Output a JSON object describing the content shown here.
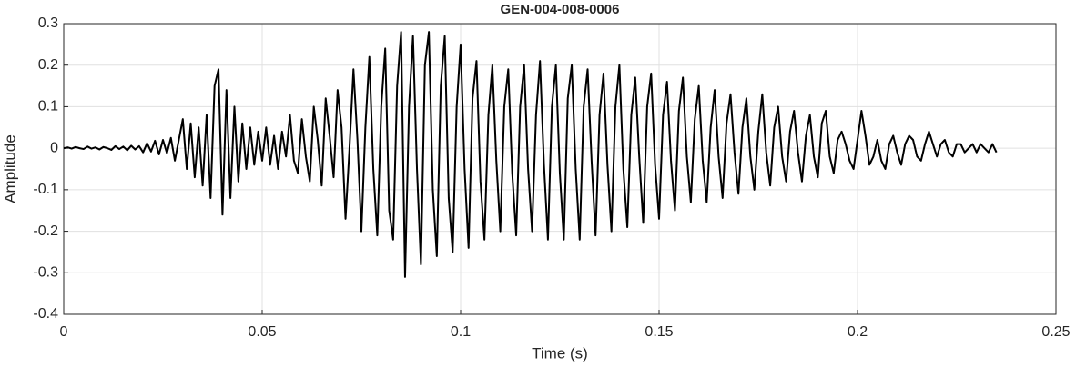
{
  "chart_data": {
    "type": "line",
    "title": "GEN-004-008-0006",
    "x_label": "Time (s)",
    "y_label": "Amplitude",
    "xlim": [
      0,
      0.25
    ],
    "xticks": [
      0,
      0.05,
      0.1,
      0.15,
      0.2,
      0.25
    ],
    "ylim": [
      -0.4,
      0.3
    ],
    "yticks": [
      -0.4,
      -0.3,
      -0.2,
      -0.1,
      0,
      0.1,
      0.2,
      0.3
    ],
    "grid": true,
    "color": "#000000",
    "x": [
      0,
      0.001,
      0.002,
      0.003,
      0.004,
      0.005,
      0.006,
      0.007,
      0.008,
      0.009,
      0.01,
      0.011,
      0.012,
      0.013,
      0.014,
      0.015,
      0.016,
      0.017,
      0.018,
      0.019,
      0.02,
      0.021,
      0.022,
      0.023,
      0.024,
      0.025,
      0.026,
      0.027,
      0.028,
      0.029,
      0.03,
      0.031,
      0.032,
      0.033,
      0.034,
      0.035,
      0.036,
      0.037,
      0.038,
      0.039,
      0.04,
      0.041,
      0.042,
      0.043,
      0.044,
      0.045,
      0.046,
      0.047,
      0.048,
      0.049,
      0.05,
      0.051,
      0.052,
      0.053,
      0.054,
      0.055,
      0.056,
      0.057,
      0.058,
      0.059,
      0.06,
      0.061,
      0.062,
      0.063,
      0.064,
      0.065,
      0.066,
      0.067,
      0.068,
      0.069,
      0.07,
      0.071,
      0.072,
      0.073,
      0.074,
      0.075,
      0.076,
      0.077,
      0.078,
      0.079,
      0.08,
      0.081,
      0.082,
      0.083,
      0.084,
      0.085,
      0.086,
      0.087,
      0.088,
      0.089,
      0.09,
      0.091,
      0.092,
      0.093,
      0.094,
      0.095,
      0.096,
      0.097,
      0.098,
      0.099,
      0.1,
      0.101,
      0.102,
      0.103,
      0.104,
      0.105,
      0.106,
      0.107,
      0.108,
      0.109,
      0.11,
      0.111,
      0.112,
      0.113,
      0.114,
      0.115,
      0.116,
      0.117,
      0.118,
      0.119,
      0.12,
      0.121,
      0.122,
      0.123,
      0.124,
      0.125,
      0.126,
      0.127,
      0.128,
      0.129,
      0.13,
      0.131,
      0.132,
      0.133,
      0.134,
      0.135,
      0.136,
      0.137,
      0.138,
      0.139,
      0.14,
      0.141,
      0.142,
      0.143,
      0.144,
      0.145,
      0.146,
      0.147,
      0.148,
      0.149,
      0.15,
      0.151,
      0.152,
      0.153,
      0.154,
      0.155,
      0.156,
      0.157,
      0.158,
      0.159,
      0.16,
      0.161,
      0.162,
      0.163,
      0.164,
      0.165,
      0.166,
      0.167,
      0.168,
      0.169,
      0.17,
      0.171,
      0.172,
      0.173,
      0.174,
      0.175,
      0.176,
      0.177,
      0.178,
      0.179,
      0.18,
      0.181,
      0.182,
      0.183,
      0.184,
      0.185,
      0.186,
      0.187,
      0.188,
      0.189,
      0.19,
      0.191,
      0.192,
      0.193,
      0.194,
      0.195,
      0.196,
      0.197,
      0.198,
      0.199,
      0.2,
      0.201,
      0.202,
      0.203,
      0.204,
      0.205,
      0.206,
      0.207,
      0.208,
      0.209,
      0.21,
      0.211,
      0.212,
      0.213,
      0.214,
      0.215,
      0.216,
      0.217,
      0.218,
      0.219,
      0.22,
      0.221,
      0.222,
      0.223,
      0.224,
      0.225,
      0.226,
      0.227,
      0.228,
      0.229,
      0.23,
      0.231,
      0.232,
      0.233,
      0.234,
      0.235
    ],
    "values": [
      0,
      0.002,
      -0.001,
      0.003,
      0,
      -0.002,
      0.004,
      -0.001,
      0.002,
      -0.003,
      0.003,
      0,
      -0.004,
      0.005,
      -0.002,
      0.004,
      -0.005,
      0.006,
      -0.003,
      0.005,
      -0.01,
      0.012,
      -0.008,
      0.018,
      -0.015,
      0.02,
      -0.012,
      0.025,
      -0.03,
      0.02,
      0.07,
      -0.05,
      0.06,
      -0.07,
      0.05,
      -0.09,
      0.08,
      -0.12,
      0.15,
      0.19,
      -0.16,
      0.14,
      -0.12,
      0.1,
      -0.08,
      0.06,
      -0.05,
      0.05,
      -0.04,
      0.04,
      -0.03,
      0.05,
      -0.04,
      0.03,
      -0.05,
      0.04,
      -0.02,
      0.08,
      -0.03,
      -0.06,
      0.07,
      -0.02,
      -0.08,
      0.1,
      0.02,
      -0.09,
      0.12,
      0.03,
      -0.07,
      0.14,
      0.05,
      -0.17,
      0.0,
      0.19,
      0.02,
      -0.2,
      0.05,
      0.22,
      -0.05,
      -0.21,
      0.1,
      0.24,
      -0.15,
      -0.22,
      0.15,
      0.28,
      -0.31,
      0.1,
      0.27,
      -0.05,
      -0.28,
      0.2,
      0.28,
      -0.1,
      -0.26,
      0.15,
      0.27,
      -0.12,
      -0.25,
      0.1,
      0.25,
      -0.05,
      -0.24,
      0.12,
      0.21,
      -0.08,
      -0.22,
      0.08,
      0.2,
      -0.03,
      -0.2,
      0.1,
      0.19,
      -0.06,
      -0.21,
      0.1,
      0.2,
      -0.05,
      -0.2,
      0.08,
      0.21,
      -0.04,
      -0.22,
      0.1,
      0.2,
      -0.06,
      -0.22,
      0.12,
      0.2,
      -0.05,
      -0.22,
      0.1,
      0.19,
      -0.03,
      -0.21,
      0.08,
      0.18,
      -0.04,
      -0.2,
      0.1,
      0.2,
      -0.05,
      -0.19,
      0.08,
      0.17,
      -0.02,
      -0.18,
      0.1,
      0.18,
      -0.04,
      -0.17,
      0.08,
      0.16,
      -0.03,
      -0.15,
      0.09,
      0.17,
      -0.02,
      -0.13,
      0.07,
      0.15,
      -0.03,
      -0.13,
      0.05,
      0.14,
      -0.02,
      -0.12,
      0.06,
      0.13,
      -0.01,
      -0.11,
      0.05,
      0.12,
      -0.02,
      -0.1,
      0.04,
      0.13,
      -0.01,
      -0.09,
      0.05,
      0.1,
      -0.02,
      -0.08,
      0.04,
      0.09,
      -0.01,
      -0.08,
      0.03,
      0.08,
      -0.02,
      -0.07,
      0.06,
      0.09,
      -0.02,
      -0.06,
      0.02,
      0.04,
      0.01,
      -0.03,
      -0.05,
      0.02,
      0.09,
      0.03,
      -0.04,
      -0.02,
      0.02,
      -0.03,
      -0.05,
      0.01,
      0.03,
      -0.01,
      -0.04,
      0.01,
      0.03,
      0.02,
      -0.02,
      -0.03,
      0.01,
      0.04,
      0.01,
      -0.02,
      0.01,
      0.02,
      -0.01,
      -0.02,
      0.01,
      0.01,
      -0.01,
      0.0,
      0.01,
      -0.01,
      0.01,
      0.0,
      -0.01,
      0.01,
      -0.01
    ]
  }
}
